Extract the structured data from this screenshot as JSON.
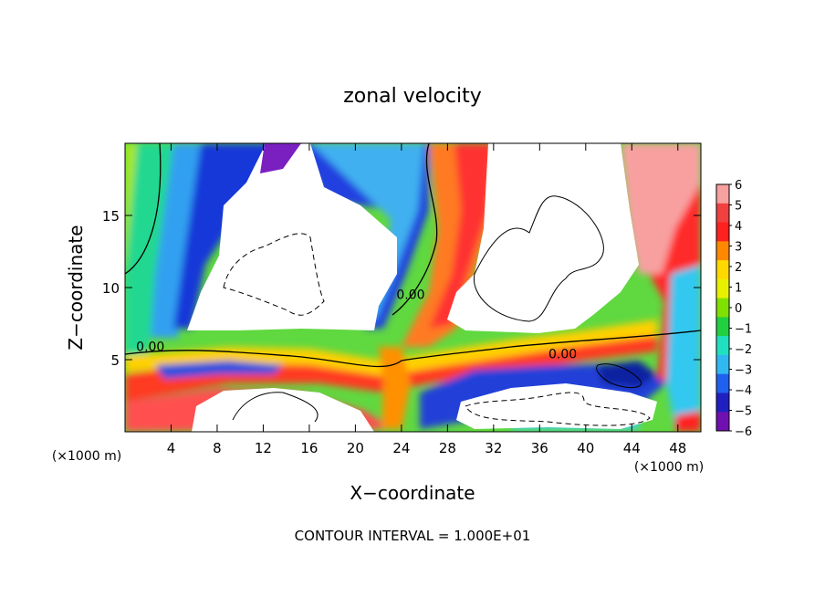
{
  "chart_data": {
    "type": "heatmap",
    "title": "zonal velocity",
    "xlabel": "X−coordinate",
    "ylabel": "Z−coordinate",
    "x_unit": "(×1000 m)",
    "y_unit": "(×1000 m)",
    "xlim": [
      0,
      50
    ],
    "ylim": [
      0,
      20
    ],
    "x_ticks": [
      4,
      8,
      12,
      16,
      20,
      24,
      28,
      32,
      36,
      40,
      44,
      48
    ],
    "x_tick_labels": [
      "4",
      "8",
      "12",
      "16",
      "20",
      "24",
      "28",
      "32",
      "36",
      "40",
      "44",
      "48"
    ],
    "y_ticks": [
      5,
      10,
      15
    ],
    "y_tick_labels": [
      "5",
      "10",
      "15"
    ],
    "colorbar": {
      "levels": [
        6,
        5,
        4,
        3,
        2,
        1,
        0,
        -1,
        -2,
        -3,
        -4,
        -5,
        -6
      ],
      "labels": [
        "6",
        "5",
        "4",
        "3",
        "2",
        "1",
        "0",
        "−1",
        "−2",
        "−3",
        "−4",
        "−5",
        "−6"
      ],
      "colors": [
        "#f7a0a0",
        "#f04040",
        "#ff2020",
        "#ff8800",
        "#ffd800",
        "#e8f000",
        "#80e000",
        "#20d040",
        "#20e0c0",
        "#30b8f0",
        "#2060f0",
        "#2020c0",
        "#7010b0"
      ]
    },
    "contour_labels": [
      {
        "text": "0.00",
        "x": 2.2,
        "y": 5.6
      },
      {
        "text": "0.00",
        "x": 24.8,
        "y": 9.2
      },
      {
        "text": "0.00",
        "x": 38.0,
        "y": 5.1
      }
    ],
    "footnote": "CONTOUR INTERVAL = 1.000E+01",
    "grid": false,
    "legend": "colorbar-right"
  }
}
